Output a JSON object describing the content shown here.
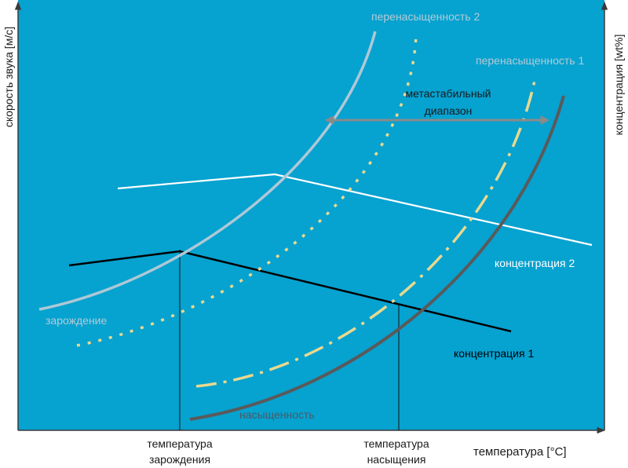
{
  "axes": {
    "y_left": "скорость звука [м/с]",
    "y_right": "концентрация [wt%]",
    "x": "температура [°C]"
  },
  "ticks": {
    "nucleation_line1": "температура",
    "nucleation_line2": "зарождения",
    "saturation_line1": "температура",
    "saturation_line2": "насыщения"
  },
  "curves": {
    "supersaturation2": "перенасыщенность 2",
    "supersaturation1": "перенасыщенность 1",
    "saturation": "насыщенность",
    "nucleation": "зарождение"
  },
  "lines": {
    "concentration2": "концентрация 2",
    "concentration1": "концентрация 1"
  },
  "metastable": {
    "line1": "метастабильный",
    "line2": "диапазон"
  },
  "colors": {
    "plot_background": "#06a2d0",
    "supersaturation2": "#aec8d6",
    "supersaturation1": "#e8d98f",
    "saturation": "#5a5a5a",
    "concentration2": "#ffffff",
    "concentration1": "#000000",
    "arrow": "#8a8a8a",
    "text_light": "#b4cbd6",
    "text_dark": "#1a1a1a"
  }
}
